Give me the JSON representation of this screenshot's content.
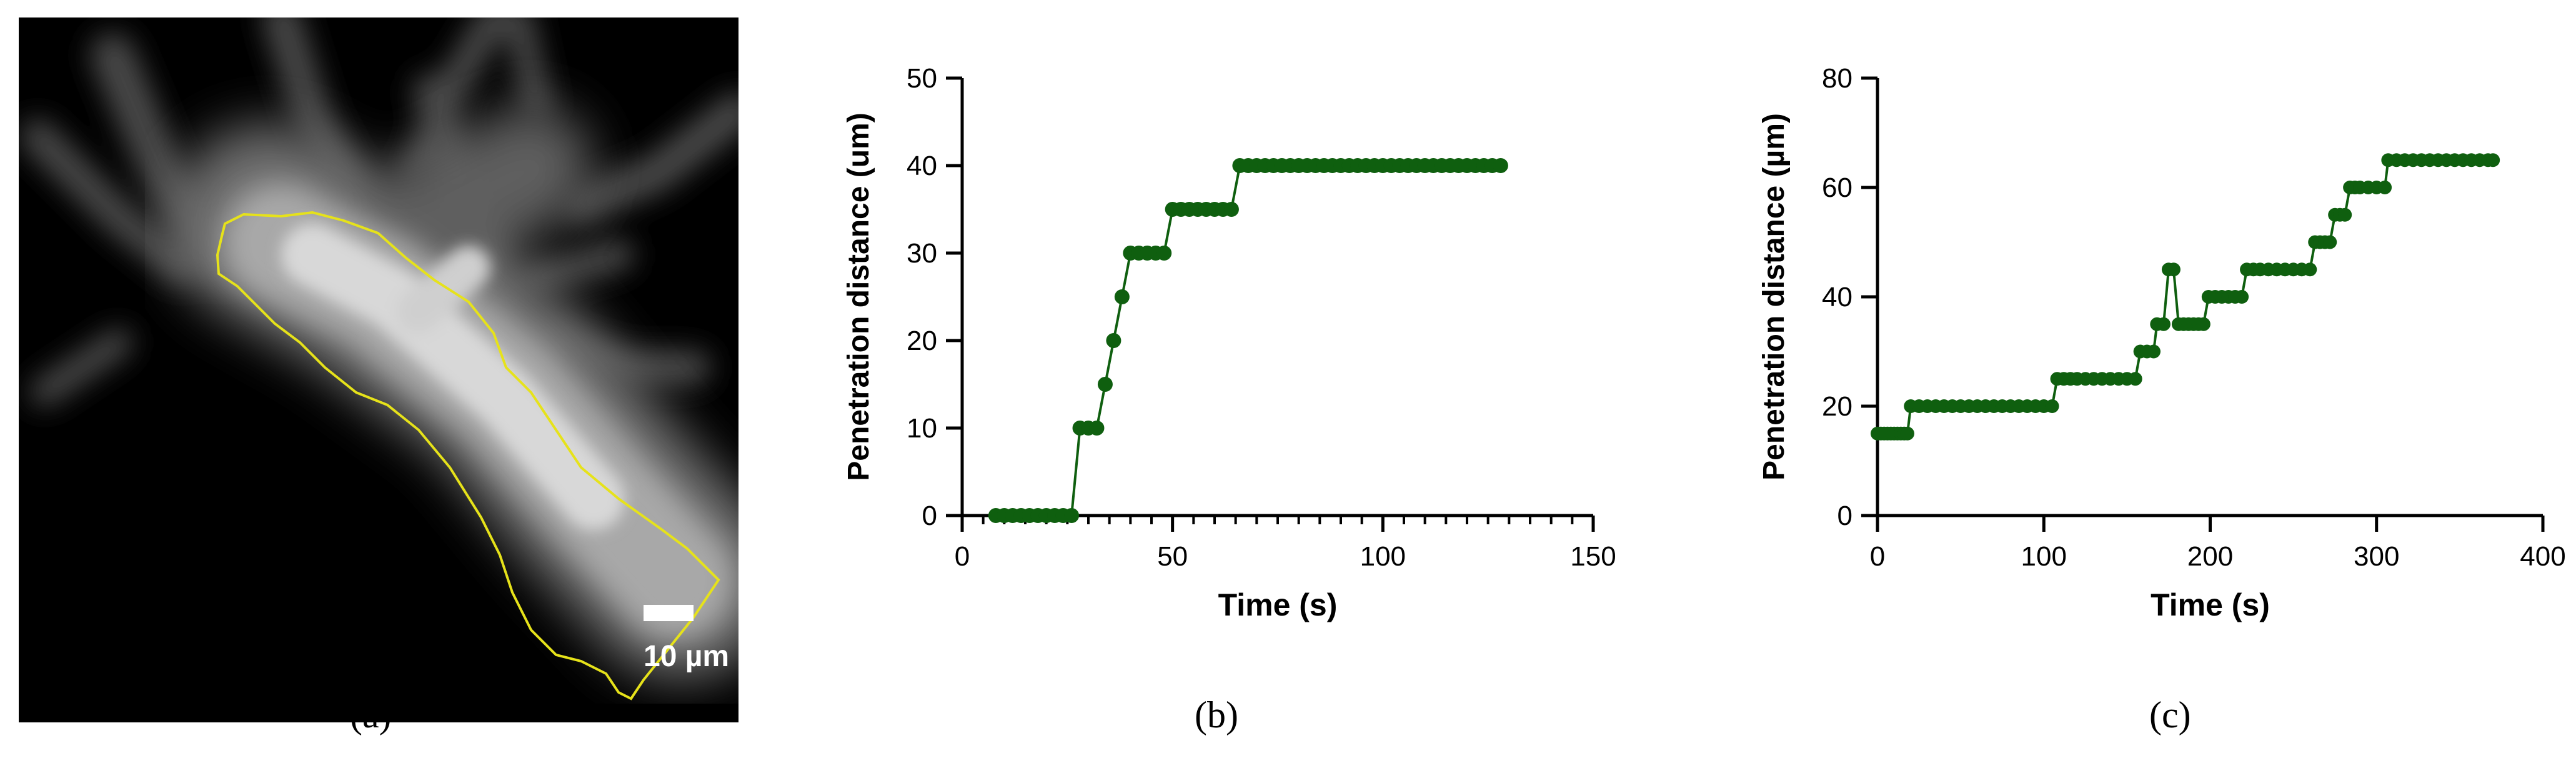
{
  "panel_labels": {
    "a": "(a)",
    "b": "(b)",
    "c": "(c)"
  },
  "image_panel": {
    "scale_bar_label": "10 µm",
    "outline_color": "#e6e21a"
  },
  "series_color": "#0f5f0f",
  "chart_data": [
    {
      "type": "line",
      "xlabel": "Time (s)",
      "ylabel": "Penetration distance (um)",
      "xlim": [
        0,
        150
      ],
      "ylim": [
        0,
        50
      ],
      "x_ticks": [
        0,
        50,
        100,
        150
      ],
      "y_ticks": [
        0,
        10,
        20,
        30,
        40,
        50
      ],
      "x_minor_step": 5,
      "grid": false,
      "x": [
        8,
        10,
        12,
        14,
        16,
        18,
        20,
        22,
        24,
        26,
        28,
        30,
        32,
        34,
        36,
        38,
        40,
        42,
        44,
        46,
        48,
        50,
        52,
        54,
        56,
        58,
        60,
        62,
        64,
        66,
        68,
        70,
        72,
        74,
        76,
        78,
        80,
        82,
        84,
        86,
        88,
        90,
        92,
        94,
        96,
        98,
        100,
        102,
        104,
        106,
        108,
        110,
        112,
        114,
        116,
        118,
        120,
        122,
        124,
        126,
        128
      ],
      "y": [
        0,
        0,
        0,
        0,
        0,
        0,
        0,
        0,
        0,
        0,
        10,
        10,
        10,
        15,
        20,
        25,
        30,
        30,
        30,
        30,
        30,
        35,
        35,
        35,
        35,
        35,
        35,
        35,
        35,
        40,
        40,
        40,
        40,
        40,
        40,
        40,
        40,
        40,
        40,
        40,
        40,
        40,
        40,
        40,
        40,
        40,
        40,
        40,
        40,
        40,
        40,
        40,
        40,
        40,
        40,
        40,
        40,
        40,
        40,
        40,
        40
      ]
    },
    {
      "type": "line",
      "xlabel": "Time (s)",
      "ylabel": "Penetration distance (µm)",
      "xlim": [
        0,
        400
      ],
      "ylim": [
        0,
        80
      ],
      "x_ticks": [
        0,
        100,
        200,
        300,
        400
      ],
      "y_ticks": [
        0,
        20,
        40,
        60,
        80
      ],
      "grid": false,
      "x": [
        0,
        2,
        4,
        6,
        8,
        10,
        12,
        14,
        16,
        18,
        20,
        25,
        30,
        35,
        40,
        45,
        50,
        55,
        60,
        65,
        70,
        75,
        80,
        85,
        90,
        95,
        100,
        105,
        108,
        112,
        116,
        120,
        125,
        130,
        135,
        140,
        145,
        150,
        155,
        158,
        162,
        166,
        168,
        172,
        175,
        178,
        181,
        184,
        187,
        190,
        193,
        196,
        199,
        203,
        207,
        211,
        215,
        219,
        222,
        226,
        230,
        235,
        240,
        245,
        250,
        255,
        260,
        263,
        266,
        269,
        272,
        275,
        278,
        281,
        284,
        287,
        290,
        295,
        300,
        305,
        307,
        312,
        317,
        322,
        327,
        332,
        337,
        342,
        347,
        352,
        357,
        362,
        367,
        370
      ],
      "y": [
        15,
        15,
        15,
        15,
        15,
        15,
        15,
        15,
        15,
        15,
        20,
        20,
        20,
        20,
        20,
        20,
        20,
        20,
        20,
        20,
        20,
        20,
        20,
        20,
        20,
        20,
        20,
        20,
        25,
        25,
        25,
        25,
        25,
        25,
        25,
        25,
        25,
        25,
        25,
        30,
        30,
        30,
        35,
        35,
        45,
        45,
        35,
        35,
        35,
        35,
        35,
        35,
        40,
        40,
        40,
        40,
        40,
        40,
        45,
        45,
        45,
        45,
        45,
        45,
        45,
        45,
        45,
        50,
        50,
        50,
        50,
        55,
        55,
        55,
        60,
        60,
        60,
        60,
        60,
        60,
        65,
        65,
        65,
        65,
        65,
        65,
        65,
        65,
        65,
        65,
        65,
        65,
        65,
        65
      ]
    }
  ]
}
